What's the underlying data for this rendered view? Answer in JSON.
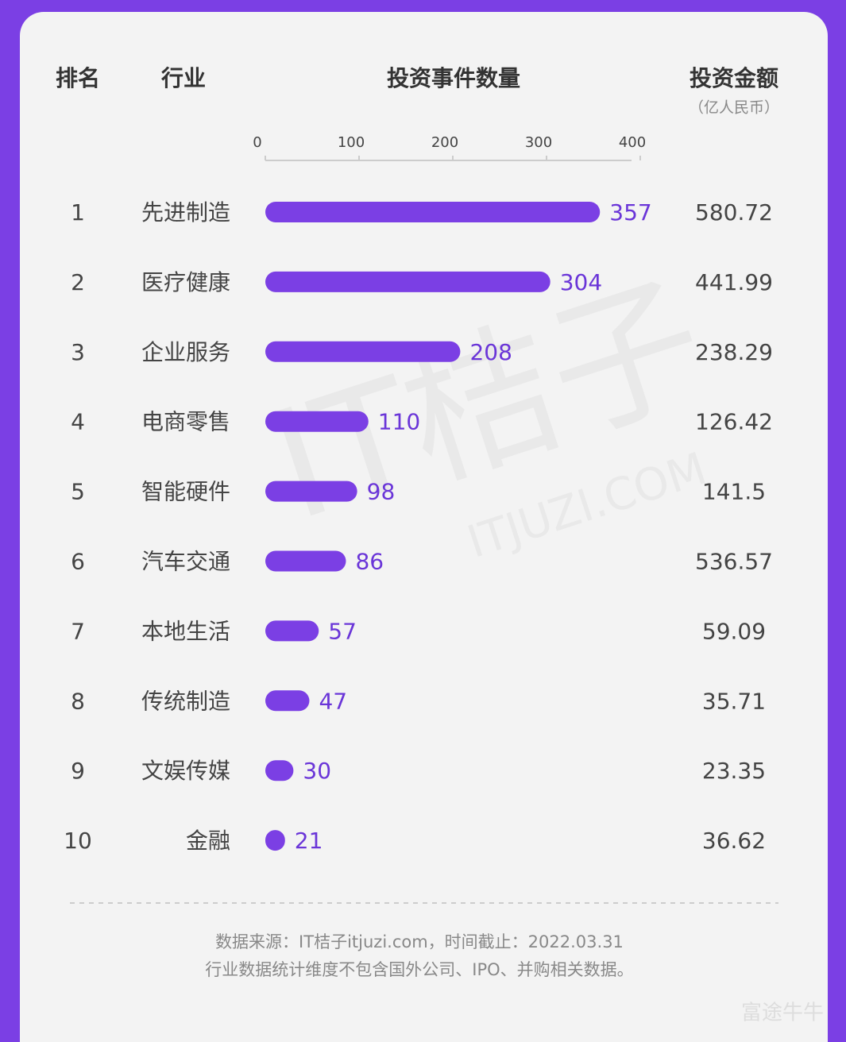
{
  "chart_data": {
    "type": "bar",
    "rank_header": "排名",
    "category_header": "行业",
    "title": "投资事件数量",
    "amount_header": "投资金额",
    "amount_unit": "（亿人民币）",
    "ranks": [
      1,
      2,
      3,
      4,
      5,
      6,
      7,
      8,
      9,
      10
    ],
    "categories": [
      "先进制造",
      "医疗健康",
      "企业服务",
      "电商零售",
      "智能硬件",
      "汽车交通",
      "本地生活",
      "传统制造",
      "文娱传媒",
      "金融"
    ],
    "values": [
      357,
      304,
      208,
      110,
      98,
      86,
      57,
      47,
      30,
      21
    ],
    "amounts": [
      580.72,
      441.99,
      238.29,
      126.42,
      141.5,
      536.57,
      59.09,
      35.71,
      23.35,
      36.62
    ],
    "color": "#7b3fe4",
    "xlim": [
      0,
      400
    ],
    "xticks": [
      0,
      100,
      200,
      300,
      400
    ],
    "source": "数据来源：IT桔子itjuzi.com，时间截止：2022.03.31",
    "note": "行业数据统计维度不包含国外公司、IPO、并购相关数据。",
    "watermark": "IT桔子",
    "watermark_url": "ITJUZI.COM",
    "corner_mark": "富途牛牛"
  }
}
